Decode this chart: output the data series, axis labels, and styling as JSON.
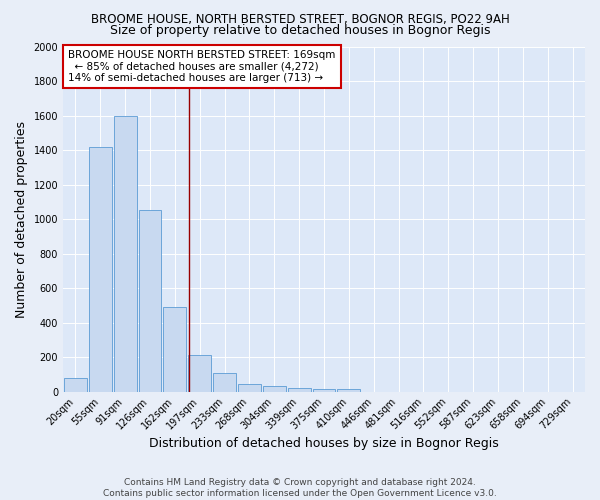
{
  "title": "BROOME HOUSE, NORTH BERSTED STREET, BOGNOR REGIS, PO22 9AH",
  "subtitle": "Size of property relative to detached houses in Bognor Regis",
  "xlabel": "Distribution of detached houses by size in Bognor Regis",
  "ylabel": "Number of detached properties",
  "categories": [
    "20sqm",
    "55sqm",
    "91sqm",
    "126sqm",
    "162sqm",
    "197sqm",
    "233sqm",
    "268sqm",
    "304sqm",
    "339sqm",
    "375sqm",
    "410sqm",
    "446sqm",
    "481sqm",
    "516sqm",
    "552sqm",
    "587sqm",
    "623sqm",
    "658sqm",
    "694sqm",
    "729sqm"
  ],
  "values": [
    80,
    1420,
    1600,
    1050,
    490,
    210,
    110,
    45,
    30,
    20,
    15,
    15,
    0,
    0,
    0,
    0,
    0,
    0,
    0,
    0,
    0
  ],
  "bar_color": "#c8d9f0",
  "bar_edgecolor": "#5b9bd5",
  "vline_x": 4.57,
  "vline_color": "#990000",
  "annotation_text": "BROOME HOUSE NORTH BERSTED STREET: 169sqm\n  ← 85% of detached houses are smaller (4,272)\n14% of semi-detached houses are larger (713) →",
  "annotation_box_color": "#ffffff",
  "annotation_box_edgecolor": "#cc0000",
  "ylim": [
    0,
    2000
  ],
  "yticks": [
    0,
    200,
    400,
    600,
    800,
    1000,
    1200,
    1400,
    1600,
    1800,
    2000
  ],
  "fig_background_color": "#e8eef8",
  "background_color": "#dde8f8",
  "grid_color": "#ffffff",
  "footer_line1": "Contains HM Land Registry data © Crown copyright and database right 2024.",
  "footer_line2": "Contains public sector information licensed under the Open Government Licence v3.0.",
  "title_fontsize": 8.5,
  "subtitle_fontsize": 9,
  "axis_label_fontsize": 9,
  "tick_fontsize": 7,
  "annotation_fontsize": 7.5,
  "footer_fontsize": 6.5
}
